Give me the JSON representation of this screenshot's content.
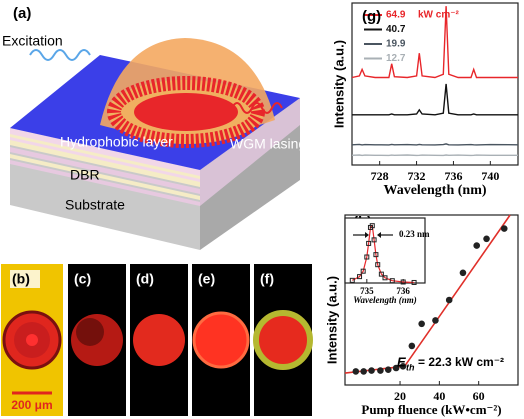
{
  "figure": {
    "panel_a": {
      "label": "(a)",
      "excitation": "Excitation",
      "hydrophobic": "Hydrophobic layer",
      "wgm": "WGM lasing",
      "dbr": "DBR",
      "substrate": "Substrate"
    },
    "images": {
      "labels": [
        "(b)",
        "(c)",
        "(d)",
        "(e)",
        "(f)"
      ],
      "scale_bar": "200 μm"
    }
  },
  "chart_data": [
    {
      "type": "line",
      "label": "(g)",
      "ylabel": "Intensity (a.u.)",
      "xlabel": "Wavelength (nm)",
      "legend_unit": "kW cm⁻²",
      "x": [
        725,
        725.8,
        726.1,
        726.4,
        727.5,
        729,
        729.3,
        729.6,
        731,
        732,
        732.3,
        732.6,
        734,
        734.9,
        735.2,
        735.5,
        736.5,
        737.9,
        738.2,
        738.5,
        740,
        743
      ],
      "xlim": [
        725,
        743
      ],
      "xticks": [
        728,
        732,
        736,
        740
      ],
      "ylim": [
        0,
        10
      ],
      "series": [
        {
          "name": "64.9",
          "color": "#e8262a",
          "values": [
            5.4,
            5.5,
            5.9,
            5.5,
            5.4,
            5.4,
            6.25,
            5.45,
            5.4,
            5.5,
            6.9,
            5.5,
            5.4,
            5.6,
            9.8,
            5.6,
            5.4,
            5.4,
            5.9,
            5.4,
            5.4,
            5.4
          ]
        },
        {
          "name": "40.7",
          "color": "#111111",
          "values": [
            3.1,
            3.1,
            3.1,
            3.1,
            3.1,
            3.1,
            3.15,
            3.1,
            3.1,
            3.15,
            3.4,
            3.15,
            3.1,
            3.2,
            5.0,
            3.2,
            3.1,
            3.1,
            3.15,
            3.1,
            3.1,
            3.1
          ]
        },
        {
          "name": "19.9",
          "color": "#4a5560",
          "values": [
            1.25,
            1.27,
            1.24,
            1.26,
            1.25,
            1.24,
            1.27,
            1.25,
            1.26,
            1.24,
            1.27,
            1.25,
            1.24,
            1.26,
            1.3,
            1.25,
            1.24,
            1.26,
            1.25,
            1.24,
            1.26,
            1.25
          ]
        },
        {
          "name": "12.7",
          "color": "#a9b0b5",
          "values": [
            0.6,
            0.62,
            0.59,
            0.61,
            0.6,
            0.59,
            0.61,
            0.6,
            0.62,
            0.59,
            0.6,
            0.61,
            0.6,
            0.59,
            0.62,
            0.6,
            0.61,
            0.59,
            0.6,
            0.61,
            0.6,
            0.6
          ]
        }
      ]
    },
    {
      "type": "scatter",
      "label": "(h)",
      "ylabel": "Intensity (a.u.)",
      "xlabel": "Pump fluence (kW•cm⁻²)",
      "annotation": {
        "symbol": "E",
        "sub": "th",
        "text": "= 22.3 kW cm⁻²"
      },
      "x": [
        -2.5,
        1.5,
        5.5,
        10,
        14,
        18,
        21.5,
        26,
        31,
        38,
        45,
        52,
        59,
        64,
        73
      ],
      "values": [
        0.8,
        0.8,
        0.85,
        0.85,
        0.9,
        1.0,
        1.1,
        2.3,
        3.6,
        3.8,
        5.0,
        6.6,
        8.2,
        8.6,
        9.2
      ],
      "color": "#222222",
      "xlim": [
        -8,
        80
      ],
      "xticks": [
        20,
        40,
        60
      ],
      "ylim": [
        0,
        10
      ],
      "fit": {
        "color": "#e0302a",
        "x": [
          -8,
          22.3,
          76
        ],
        "values": [
          0.7,
          1.1,
          10
        ]
      }
    },
    {
      "type": "line",
      "xlabel": "Wavelength (nm)",
      "annotation": "0.23 nm",
      "x": [
        734.6,
        734.8,
        734.9,
        735.0,
        735.05,
        735.1,
        735.15,
        735.2,
        735.25,
        735.3,
        735.4,
        735.5,
        735.7,
        736.0,
        736.3
      ],
      "values": [
        0.045,
        0.108,
        0.2,
        0.44,
        0.67,
        0.94,
        0.97,
        0.73,
        0.48,
        0.31,
        0.15,
        0.088,
        0.039,
        0.017,
        0.009
      ],
      "color": "#e8262a",
      "marker_color": "#222222",
      "xlim": [
        734.4,
        736.6
      ],
      "xticks": [
        735,
        736
      ],
      "ylim": [
        0,
        1.1
      ]
    }
  ]
}
